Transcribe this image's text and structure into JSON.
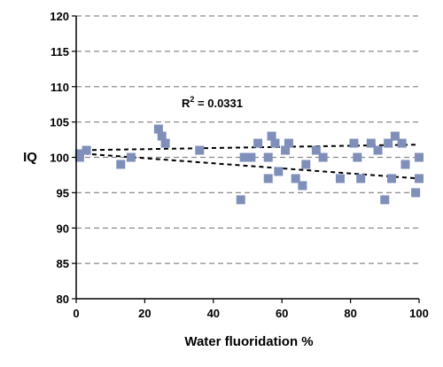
{
  "chart_data": {
    "type": "scatter",
    "xlabel": "Water fluoridation %",
    "ylabel": "IQ",
    "xlim": [
      0,
      100
    ],
    "ylim": [
      80,
      120
    ],
    "x_ticks": [
      "0",
      "20",
      "40",
      "60",
      "80",
      "100"
    ],
    "y_ticks": [
      "80",
      "85",
      "90",
      "95",
      "100",
      "105",
      "110",
      "115",
      "120"
    ],
    "grid": "horizontal dashed",
    "legend": "none",
    "annotation": {
      "prefix": "R",
      "sup": "2",
      "suffix": " = 0.0331"
    },
    "marker_color": "#7f8fba",
    "series": [
      {
        "values": [
          {
            "x": 1,
            "y": 100.5
          },
          {
            "x": 1,
            "y": 100
          },
          {
            "x": 3,
            "y": 101
          },
          {
            "x": 13,
            "y": 99
          },
          {
            "x": 16,
            "y": 100
          },
          {
            "x": 24,
            "y": 104
          },
          {
            "x": 25,
            "y": 103
          },
          {
            "x": 26,
            "y": 102
          },
          {
            "x": 36,
            "y": 101
          },
          {
            "x": 48,
            "y": 94
          },
          {
            "x": 49,
            "y": 100
          },
          {
            "x": 51,
            "y": 100
          },
          {
            "x": 53,
            "y": 102
          },
          {
            "x": 56,
            "y": 97
          },
          {
            "x": 56,
            "y": 100
          },
          {
            "x": 57,
            "y": 103
          },
          {
            "x": 58,
            "y": 102
          },
          {
            "x": 59,
            "y": 98
          },
          {
            "x": 61,
            "y": 101
          },
          {
            "x": 62,
            "y": 102
          },
          {
            "x": 64,
            "y": 97
          },
          {
            "x": 66,
            "y": 96
          },
          {
            "x": 67,
            "y": 99
          },
          {
            "x": 70,
            "y": 101
          },
          {
            "x": 72,
            "y": 100
          },
          {
            "x": 77,
            "y": 97
          },
          {
            "x": 81,
            "y": 102
          },
          {
            "x": 82,
            "y": 100
          },
          {
            "x": 83,
            "y": 97
          },
          {
            "x": 86,
            "y": 102
          },
          {
            "x": 88,
            "y": 101
          },
          {
            "x": 90,
            "y": 94
          },
          {
            "x": 91,
            "y": 102
          },
          {
            "x": 92,
            "y": 97
          },
          {
            "x": 93,
            "y": 103
          },
          {
            "x": 95,
            "y": 102
          },
          {
            "x": 96,
            "y": 99
          },
          {
            "x": 99,
            "y": 95
          },
          {
            "x": 100,
            "y": 100
          },
          {
            "x": 100,
            "y": 97
          }
        ]
      }
    ],
    "trendlines": [
      {
        "style": "dashed",
        "from": {
          "x": 0,
          "y": 101
        },
        "to": {
          "x": 100,
          "y": 101.8
        }
      },
      {
        "style": "dashed",
        "from": {
          "x": 0,
          "y": 100.6
        },
        "to": {
          "x": 100,
          "y": 97
        }
      }
    ]
  }
}
